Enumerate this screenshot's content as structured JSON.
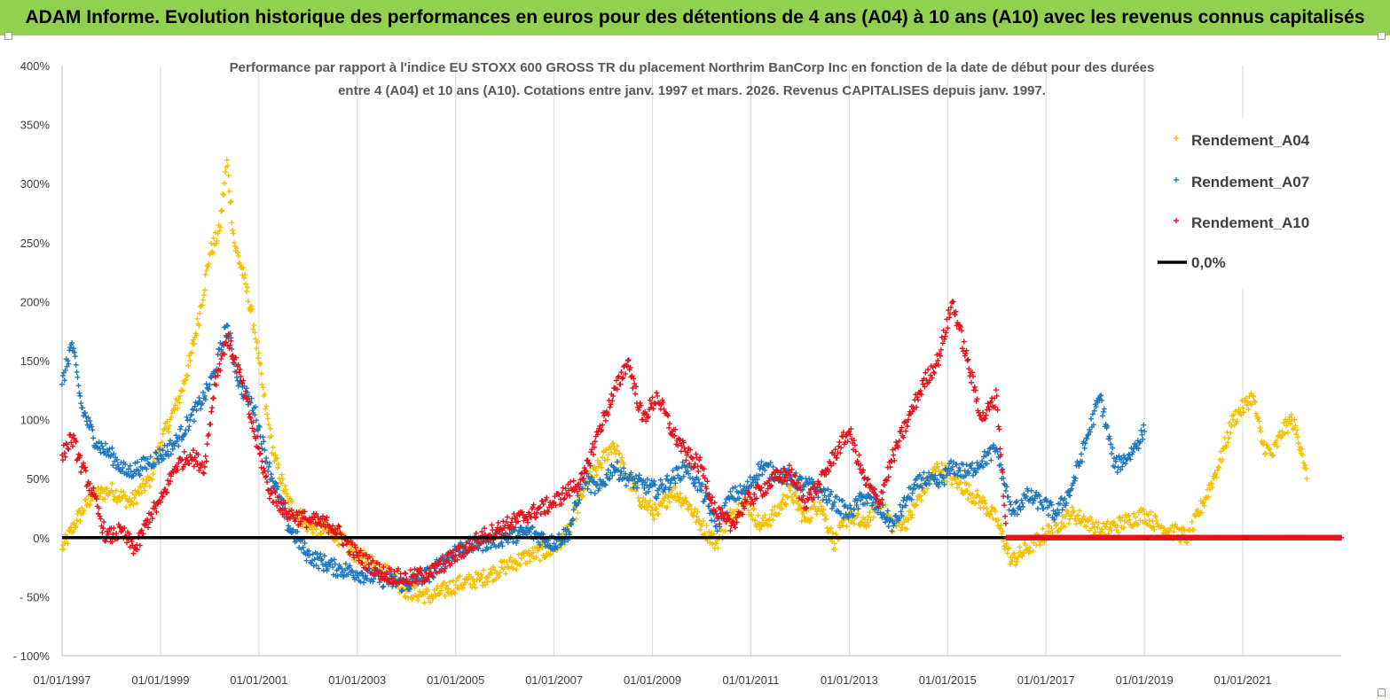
{
  "banner": {
    "title": "ADAM Informe. Evolution historique des performances en euros pour des détentions de 4 ans (A04) à 10 ans (A10) avec les revenus connus capitalisés"
  },
  "colors": {
    "banner_bg": "#92d050",
    "A04": "#f5c000",
    "A07": "#1f77c0",
    "A10": "#e8101a",
    "zero_line": "#000000"
  },
  "chart_data": {
    "type": "scatter",
    "title": "Performance par rapport à l'indice EU STOXX 600 GROSS TR  du placement Northrim BanCorp Inc en fonction de la date de début pour des durées",
    "subtitle": "entre 4 (A04) et 10 ans (A10). Cotations entre janv. 1997 et mars. 2026. Revenus CAPITALISES depuis janv. 1997.",
    "xlabel": "",
    "ylabel": "",
    "xlim": [
      1997.0,
      2023.0
    ],
    "ylim": [
      -100,
      400
    ],
    "y_ticks": [
      "400%",
      "350%",
      "300%",
      "250%",
      "200%",
      "150%",
      "100%",
      "50%",
      "0%",
      "- 50%",
      "- 100%"
    ],
    "y_tick_values": [
      400,
      350,
      300,
      250,
      200,
      150,
      100,
      50,
      0,
      -50,
      -100
    ],
    "x_ticks": [
      "01/01/1997",
      "01/01/1999",
      "01/01/2001",
      "01/01/2003",
      "01/01/2005",
      "01/01/2007",
      "01/01/2009",
      "01/01/2011",
      "01/01/2013",
      "01/01/2015",
      "01/01/2017",
      "01/01/2019",
      "01/01/2021"
    ],
    "x_tick_values": [
      1997,
      1999,
      2001,
      2003,
      2005,
      2007,
      2009,
      2011,
      2013,
      2015,
      2017,
      2019,
      2021
    ],
    "grid": "vertical",
    "legend_position": "top-right",
    "series": [
      {
        "name": "Rendement_A04",
        "marker": "+",
        "x": [
          1997.0,
          1997.3,
          1997.6,
          1998.0,
          1998.4,
          1998.8,
          1999.0,
          1999.2,
          1999.4,
          1999.6,
          1999.8,
          2000.0,
          2000.2,
          2000.35,
          2000.5,
          2000.7,
          2000.9,
          2001.1,
          2001.3,
          2001.6,
          2002.0,
          2002.5,
          2003.0,
          2003.5,
          2004.0,
          2004.5,
          2005.0,
          2005.5,
          2006.0,
          2006.5,
          2007.0,
          2007.3,
          2007.6,
          2007.9,
          2008.2,
          2008.5,
          2008.8,
          2009.1,
          2009.4,
          2009.7,
          2010.0,
          2010.3,
          2010.6,
          2010.9,
          2011.2,
          2011.5,
          2011.8,
          2012.1,
          2012.4,
          2012.7,
          2013.0,
          2013.3,
          2013.6,
          2013.9,
          2014.2,
          2014.5,
          2014.8,
          2015.1,
          2015.4,
          2015.7,
          2016.0,
          2016.3,
          2016.6,
          2016.9,
          2017.2,
          2017.5,
          2017.8,
          2018.1,
          2018.4,
          2018.7,
          2019.0,
          2019.3,
          2019.6,
          2019.9,
          2020.2,
          2020.5,
          2020.8,
          2021.0,
          2021.2,
          2021.4,
          2021.6,
          2021.8,
          2022.0,
          2022.2,
          2022.3
        ],
        "y": [
          -10,
          15,
          35,
          40,
          30,
          50,
          80,
          100,
          120,
          150,
          190,
          240,
          260,
          320,
          250,
          220,
          180,
          120,
          70,
          30,
          10,
          5,
          -15,
          -25,
          -45,
          -50,
          -40,
          -35,
          -25,
          -15,
          -10,
          5,
          40,
          60,
          80,
          50,
          30,
          20,
          40,
          30,
          10,
          -5,
          20,
          30,
          10,
          20,
          40,
          15,
          30,
          -5,
          20,
          10,
          30,
          10,
          15,
          40,
          60,
          50,
          40,
          30,
          15,
          -20,
          -10,
          0,
          10,
          20,
          15,
          5,
          10,
          15,
          20,
          10,
          5,
          0,
          30,
          60,
          100,
          110,
          120,
          80,
          70,
          90,
          100,
          75,
          50
        ]
      },
      {
        "name": "Rendement_A07",
        "marker": "+",
        "x": [
          1997.0,
          1997.2,
          1997.4,
          1997.7,
          1998.0,
          1998.3,
          1998.6,
          1999.0,
          1999.3,
          1999.6,
          1999.9,
          2000.1,
          2000.35,
          2000.6,
          2000.9,
          2001.2,
          2001.6,
          2002.0,
          2002.5,
          2003.0,
          2003.5,
          2004.0,
          2004.5,
          2005.0,
          2005.5,
          2006.0,
          2006.5,
          2007.0,
          2007.3,
          2007.6,
          2007.9,
          2008.2,
          2008.5,
          2008.8,
          2009.1,
          2009.4,
          2009.7,
          2010.0,
          2010.3,
          2010.6,
          2010.9,
          2011.2,
          2011.5,
          2011.8,
          2012.1,
          2012.4,
          2012.7,
          2013.0,
          2013.3,
          2013.6,
          2013.9,
          2014.2,
          2014.5,
          2014.8,
          2015.1,
          2015.4,
          2015.7,
          2016.0,
          2016.3,
          2016.6,
          2016.9,
          2017.2,
          2017.5,
          2017.8,
          2018.1,
          2018.4,
          2018.7,
          2019.0
        ],
        "y": [
          130,
          165,
          110,
          80,
          70,
          55,
          60,
          70,
          80,
          100,
          120,
          140,
          180,
          130,
          110,
          60,
          10,
          -15,
          -25,
          -30,
          -35,
          -40,
          -30,
          -10,
          -5,
          0,
          5,
          -5,
          5,
          50,
          40,
          60,
          50,
          45,
          40,
          50,
          60,
          40,
          10,
          35,
          40,
          60,
          55,
          50,
          45,
          40,
          30,
          20,
          35,
          25,
          10,
          35,
          50,
          45,
          60,
          55,
          65,
          75,
          20,
          35,
          30,
          20,
          40,
          80,
          120,
          60,
          70,
          90
        ]
      },
      {
        "name": "Rendement_A10",
        "marker": "+",
        "x": [
          1997.0,
          1997.2,
          1997.4,
          1997.6,
          1997.9,
          1998.2,
          1998.5,
          1998.8,
          1999.0,
          1999.3,
          1999.6,
          1999.9,
          2000.1,
          2000.35,
          2000.6,
          2000.9,
          2001.2,
          2001.6,
          2002.0,
          2002.5,
          2003.0,
          2003.5,
          2004.0,
          2004.5,
          2005.0,
          2005.5,
          2006.0,
          2006.5,
          2007.0,
          2007.3,
          2007.6,
          2007.9,
          2008.2,
          2008.5,
          2008.8,
          2009.1,
          2009.4,
          2009.7,
          2010.0,
          2010.3,
          2010.6,
          2010.9,
          2011.2,
          2011.5,
          2011.8,
          2012.1,
          2012.4,
          2012.7,
          2013.0,
          2013.3,
          2013.6,
          2013.9,
          2014.2,
          2014.5,
          2014.8,
          2015.1,
          2015.4,
          2015.7,
          2016.0,
          2016.2,
          2017.0,
          2018.0,
          2019.0,
          2020.0,
          2021.0,
          2022.0,
          2023.0
        ],
        "y": [
          70,
          85,
          60,
          40,
          0,
          5,
          -10,
          20,
          30,
          60,
          70,
          60,
          130,
          170,
          140,
          90,
          40,
          20,
          15,
          10,
          -15,
          -30,
          -35,
          -30,
          -15,
          0,
          10,
          20,
          30,
          40,
          50,
          90,
          120,
          150,
          100,
          120,
          90,
          70,
          60,
          20,
          10,
          30,
          40,
          50,
          55,
          30,
          45,
          70,
          90,
          50,
          30,
          70,
          100,
          130,
          150,
          200,
          150,
          100,
          120,
          0,
          0,
          0,
          0,
          0,
          0,
          0,
          0
        ]
      },
      {
        "name": "0,0%",
        "marker": "line",
        "x": [
          1997.0,
          2023.0
        ],
        "y": [
          0,
          0
        ]
      }
    ]
  }
}
